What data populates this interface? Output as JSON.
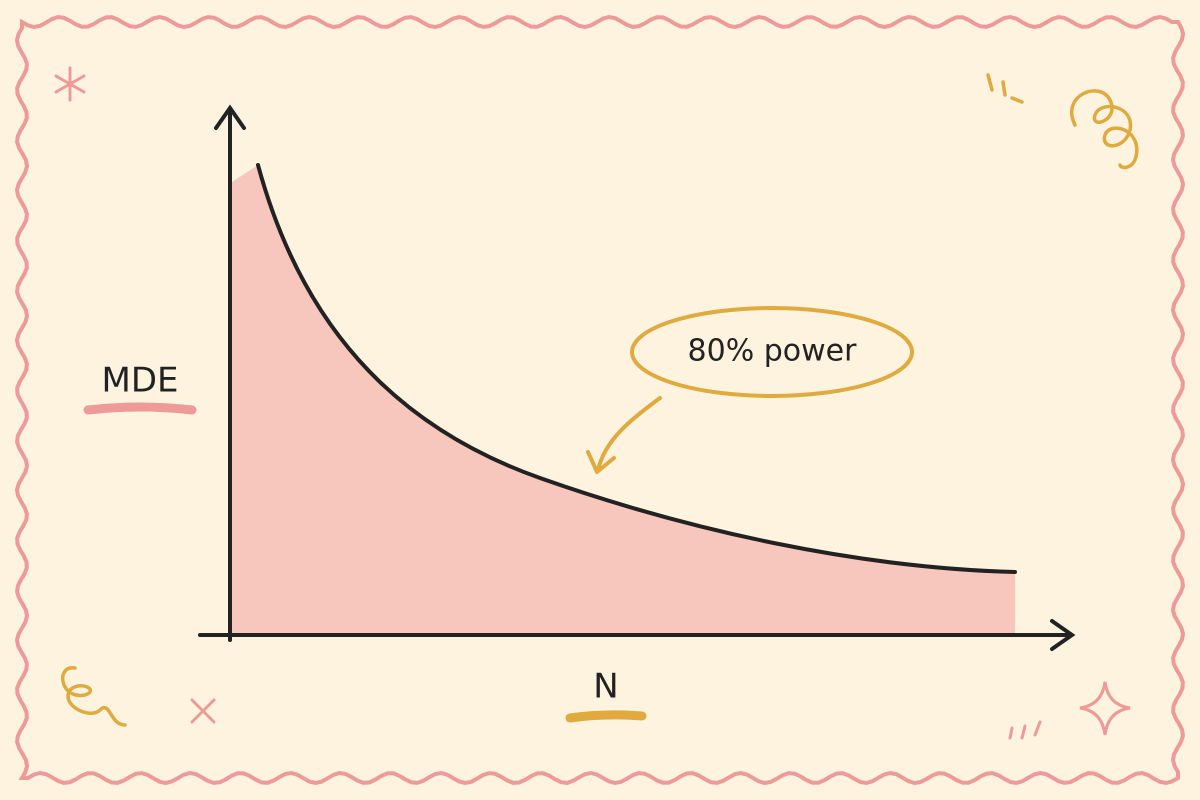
{
  "chart_data": {
    "type": "line",
    "x_label": "N",
    "y_label": "MDE",
    "annotation": "80% power",
    "color": "#222222",
    "fill": "#f7c6bd"
  }
}
